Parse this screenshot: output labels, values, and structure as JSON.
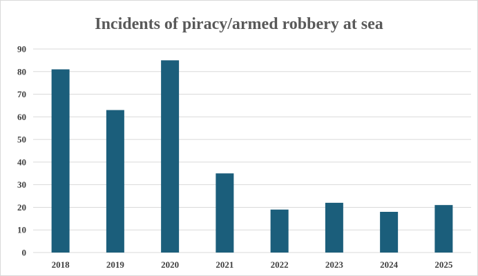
{
  "chart_data": {
    "type": "bar",
    "title": "Incidents of piracy/armed robbery at sea",
    "xlabel": "",
    "ylabel": "",
    "categories": [
      "2018",
      "2019",
      "2020",
      "2021",
      "2022",
      "2023",
      "2024",
      "2025"
    ],
    "values": [
      81,
      63,
      85,
      35,
      19,
      22,
      18,
      21
    ],
    "ylim": [
      0,
      90
    ],
    "yticks": [
      "0",
      "10",
      "20",
      "30",
      "40",
      "50",
      "60",
      "70",
      "80",
      "90"
    ],
    "grid": true,
    "legend": "none",
    "colors": {
      "bar": "#1b5e7b",
      "grid": "#d9d9d9",
      "title": "#595959",
      "axis_text": "#404040"
    }
  }
}
